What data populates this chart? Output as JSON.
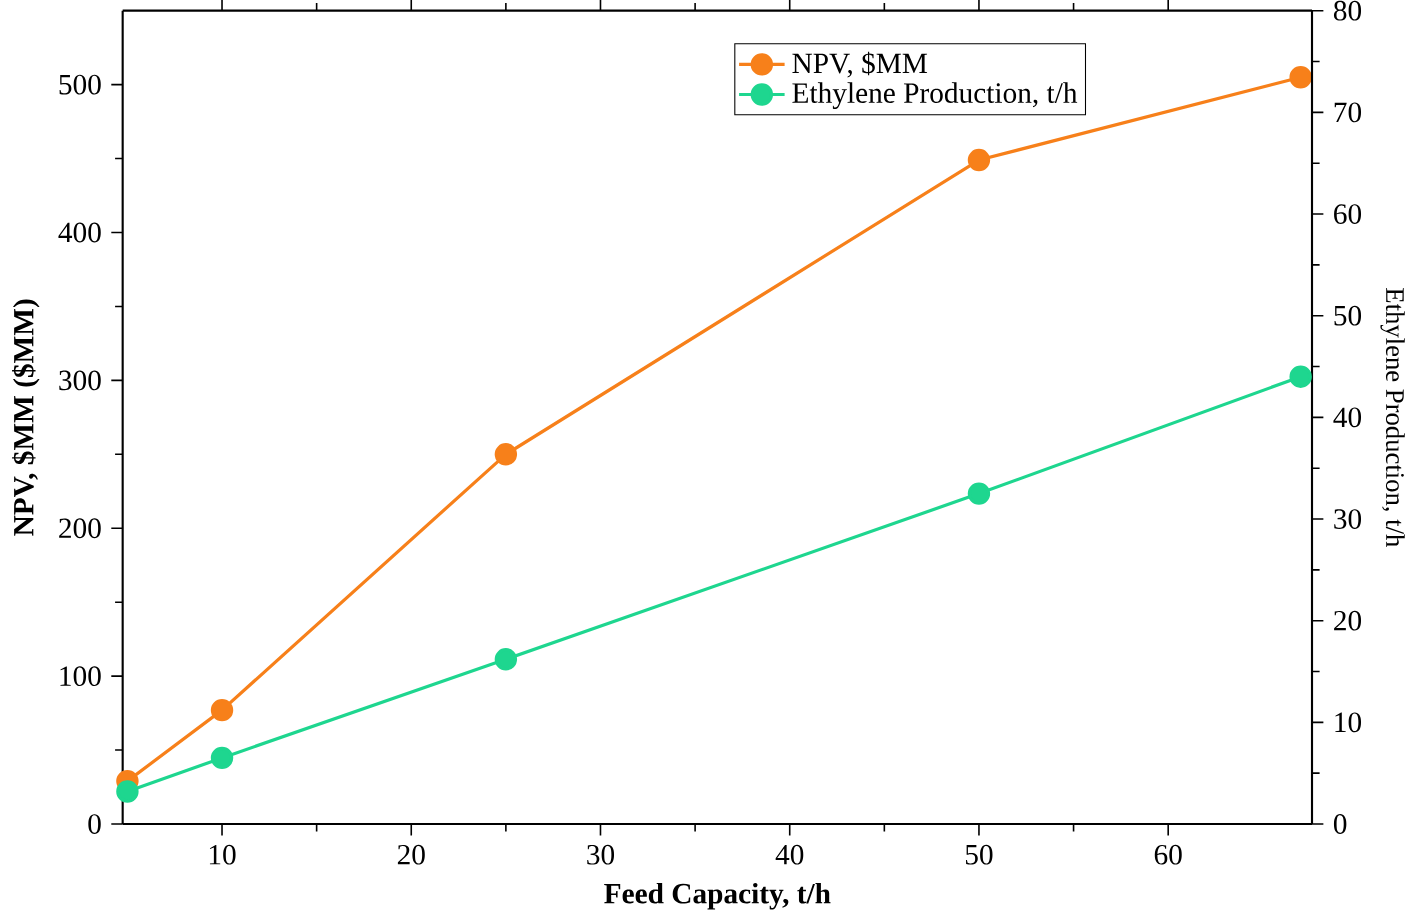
{
  "chart_data": {
    "type": "line",
    "xlabel": "Feed Capacity, t/h",
    "ylabel": "NPV, $MM ($MM)",
    "y2label": "Ethylene Production, t/h",
    "x": [
      5,
      10,
      25,
      50,
      67
    ],
    "series": [
      {
        "name": "NPV, $MM",
        "color": "#f7801a",
        "values": [
          29,
          77,
          250,
          449,
          505
        ]
      },
      {
        "name": "Ethylene Production, t/h",
        "color": "#1ed68f",
        "axis": "y2",
        "values": [
          3.2,
          6.5,
          16.2,
          32.5,
          44.0
        ]
      }
    ],
    "xlim": [
      4.75,
      67.6
    ],
    "xticks": [
      10,
      20,
      30,
      40,
      50,
      60
    ],
    "ylim": [
      0,
      550
    ],
    "yticks": [
      0,
      100,
      200,
      300,
      400,
      500
    ],
    "y2lim": [
      0,
      80
    ],
    "y2ticks": [
      0,
      10,
      20,
      30,
      40,
      50,
      60,
      70,
      80
    ],
    "legend": "top right",
    "marker": "circle",
    "line_style": "solid",
    "grid": false
  }
}
